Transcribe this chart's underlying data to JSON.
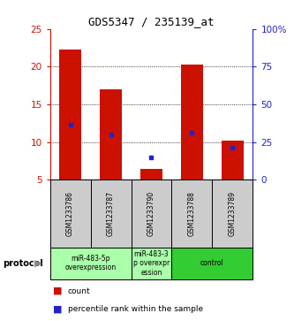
{
  "title": "GDS5347 / 235139_at",
  "samples": [
    "GSM1233786",
    "GSM1233787",
    "GSM1233790",
    "GSM1233788",
    "GSM1233789"
  ],
  "bar_bottom": 5,
  "bar_heights": [
    22.3,
    17.0,
    6.4,
    20.3,
    10.2
  ],
  "blue_marker_values": [
    12.3,
    11.0,
    8.0,
    11.3,
    9.2
  ],
  "ylim": [
    5,
    25
  ],
  "y2lim": [
    0,
    100
  ],
  "yticks": [
    5,
    10,
    15,
    20,
    25
  ],
  "y2ticks": [
    0,
    25,
    50,
    75,
    100
  ],
  "y2ticklabels": [
    "0",
    "25",
    "50",
    "75",
    "100%"
  ],
  "dotted_lines": [
    10,
    15,
    20
  ],
  "bar_color": "#cc1100",
  "blue_color": "#2222cc",
  "bar_width": 0.55,
  "sample_area_color": "#cccccc",
  "figure_bg": "#ffffff",
  "group_info": [
    {
      "start": 0,
      "end": 1,
      "label": "miR-483-5p\noverexpression",
      "color": "#aaffaa"
    },
    {
      "start": 2,
      "end": 2,
      "label": "miR-483-3\np overexpr\nession",
      "color": "#aaffaa"
    },
    {
      "start": 3,
      "end": 4,
      "label": "control",
      "color": "#33cc33"
    }
  ]
}
